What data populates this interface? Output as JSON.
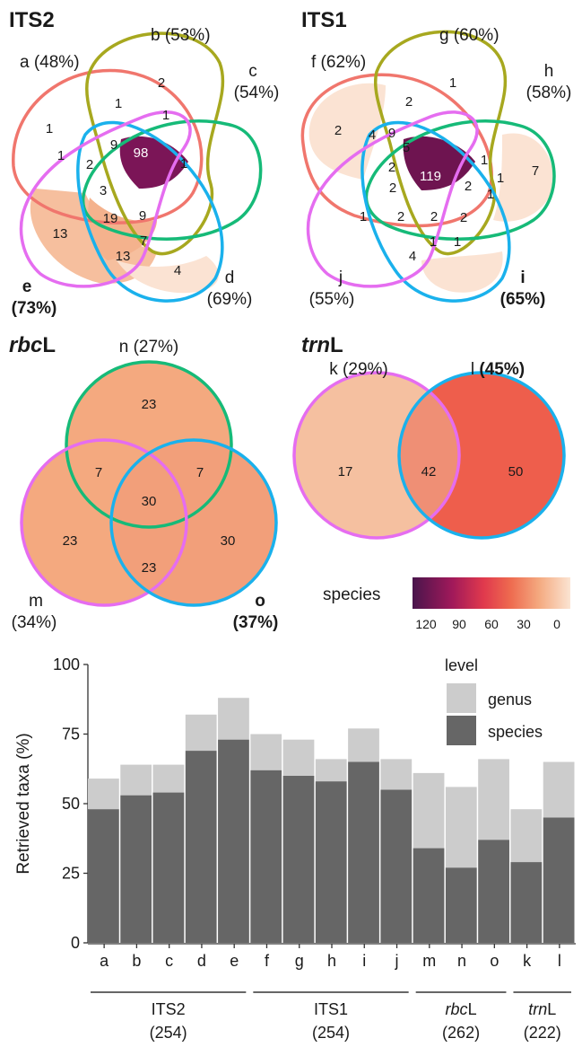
{
  "colors": {
    "species_dark": "#666666",
    "genus_light": "#cccccc",
    "palette_stops": [
      "#49154c",
      "#a0195a",
      "#e0394d",
      "#ee6a4f",
      "#f4a97f",
      "#fbe4d2"
    ],
    "set_outlines": {
      "red": "#f0766d",
      "olive": "#a7a81f",
      "green": "#16ba78",
      "blue": "#1ab1ec",
      "magenta": "#e56df0"
    }
  },
  "venn": {
    "its2": {
      "title": "ITS2",
      "sets": [
        {
          "key": "a",
          "label": "a (48%)",
          "bold": false,
          "species": 48
        },
        {
          "key": "b",
          "label": "b (53%)",
          "bold": false,
          "species": 53
        },
        {
          "key": "c",
          "label": "c (54%)",
          "bold": false,
          "species": 54
        },
        {
          "key": "d",
          "label": "d (69%)",
          "bold": false,
          "species": 69
        },
        {
          "key": "e",
          "label": "e (73%)",
          "bold": true,
          "species": 73
        }
      ],
      "regions": [
        {
          "sets": "b",
          "count": 2
        },
        {
          "sets": "a",
          "count": 1
        },
        {
          "sets": "ab",
          "count": 1
        },
        {
          "sets": "bc",
          "count": 1
        },
        {
          "sets": "ae",
          "count": 1
        },
        {
          "sets": "abe",
          "count": 9
        },
        {
          "sets": "ade",
          "count": 2
        },
        {
          "sets": "abcde",
          "count": 98
        },
        {
          "sets": "cd",
          "count": 1
        },
        {
          "sets": "acde",
          "count": 3
        },
        {
          "sets": "bcde",
          "count": 19
        },
        {
          "sets": "abcd",
          "count": 9
        },
        {
          "sets": "e",
          "count": 13
        },
        {
          "sets": "de",
          "count": 13
        },
        {
          "sets": "bd",
          "count": 7
        },
        {
          "sets": "d",
          "count": 4
        }
      ]
    },
    "its1": {
      "title": "ITS1",
      "sets": [
        {
          "key": "f",
          "label": "f (62%)",
          "bold": false,
          "species": 62
        },
        {
          "key": "g",
          "label": "g (60%)",
          "bold": false,
          "species": 60
        },
        {
          "key": "h",
          "label": "h (58%)",
          "bold": false,
          "species": 58
        },
        {
          "key": "i",
          "label": "i (65%)",
          "bold": true,
          "species": 65
        },
        {
          "key": "j",
          "label": "j (55%)",
          "bold": false,
          "species": 55
        }
      ],
      "regions": [
        {
          "sets": "g",
          "count": 1
        },
        {
          "sets": "f",
          "count": 2
        },
        {
          "sets": "fg",
          "count": 2
        },
        {
          "sets": "h",
          "count": 7
        },
        {
          "sets": "fij",
          "count": 4
        },
        {
          "sets": "fgj",
          "count": 9
        },
        {
          "sets": "fgij",
          "count": 5
        },
        {
          "sets": "fghij",
          "count": 119
        },
        {
          "sets": "ghi",
          "count": 1
        },
        {
          "sets": "fgh",
          "count": 2
        },
        {
          "sets": "fhij",
          "count": 2
        },
        {
          "sets": "ghij",
          "count": 2
        },
        {
          "sets": "hi",
          "count": 1
        },
        {
          "sets": "ij",
          "count": 1
        },
        {
          "sets": "fi",
          "count": 2
        },
        {
          "sets": "fghi",
          "count": 2
        },
        {
          "sets": "gij",
          "count": 2
        },
        {
          "sets": "gj",
          "count": 1
        },
        {
          "sets": "gi",
          "count": 1
        },
        {
          "sets": "j",
          "count": 1
        },
        {
          "sets": "i",
          "count": 4
        }
      ]
    },
    "rbcl": {
      "title_italic": "rbc",
      "title_plain": "L",
      "sets": [
        {
          "key": "n",
          "label": "n (27%)",
          "bold": false,
          "species": 27
        },
        {
          "key": "m",
          "label": "m\n(34%)",
          "bold": false,
          "species": 34
        },
        {
          "key": "o",
          "label": "o\n(37%)",
          "bold": true,
          "species": 37
        }
      ],
      "regions": [
        {
          "sets": "n",
          "count": 23
        },
        {
          "sets": "mn",
          "count": 7
        },
        {
          "sets": "mno",
          "count": 30
        },
        {
          "sets": "no",
          "count": 7
        },
        {
          "sets": "m",
          "count": 23
        },
        {
          "sets": "o",
          "count": 30
        },
        {
          "sets": "mo",
          "count": 23
        }
      ]
    },
    "trnl": {
      "title_italic": "trn",
      "title_plain": "L",
      "sets": [
        {
          "key": "k",
          "label": "k (29%)",
          "bold": false,
          "species": 29
        },
        {
          "key": "l",
          "label_plain": "l",
          "label_bold": "(45%)",
          "species": 45
        }
      ],
      "regions": [
        {
          "sets": "k",
          "count": 17
        },
        {
          "sets": "kl",
          "count": 42
        },
        {
          "sets": "l",
          "count": 50
        }
      ]
    }
  },
  "color_scale": {
    "title": "species",
    "ticks": [
      "120",
      "90",
      "60",
      "30",
      "0"
    ],
    "domain": [
      120,
      0
    ]
  },
  "chart_data": {
    "type": "bar",
    "stacked": true,
    "ylabel": "Retrieved taxa (%)",
    "xlabel": "",
    "ylim": [
      0,
      100
    ],
    "yticks": [
      0,
      25,
      50,
      75,
      100
    ],
    "grid": false,
    "legend": {
      "title": "level",
      "placement": "top-right",
      "entries": [
        "genus",
        "species"
      ]
    },
    "categories": [
      "a",
      "b",
      "c",
      "d",
      "e",
      "f",
      "g",
      "h",
      "i",
      "j",
      "m",
      "n",
      "o",
      "k",
      "l"
    ],
    "series": [
      {
        "name": "species",
        "values": [
          48,
          53,
          54,
          69,
          73,
          62,
          60,
          58,
          65,
          55,
          34,
          27,
          37,
          29,
          45
        ]
      },
      {
        "name": "genus",
        "values": [
          11,
          11,
          10,
          13,
          15,
          13,
          13,
          8,
          12,
          11,
          27,
          29,
          29,
          19,
          20
        ]
      }
    ],
    "groups": [
      {
        "name": "ITS2",
        "italic": "",
        "plain": "ITS2",
        "count": "(254)",
        "members": [
          "a",
          "b",
          "c",
          "d",
          "e"
        ]
      },
      {
        "name": "ITS1",
        "italic": "",
        "plain": "ITS1",
        "count": "(254)",
        "members": [
          "f",
          "g",
          "h",
          "i",
          "j"
        ]
      },
      {
        "name": "rbcL",
        "italic": "rbc",
        "plain": "L",
        "count": "(262)",
        "members": [
          "m",
          "n",
          "o"
        ]
      },
      {
        "name": "trnL",
        "italic": "trn",
        "plain": "L",
        "count": "(222)",
        "members": [
          "k",
          "l"
        ]
      }
    ]
  }
}
